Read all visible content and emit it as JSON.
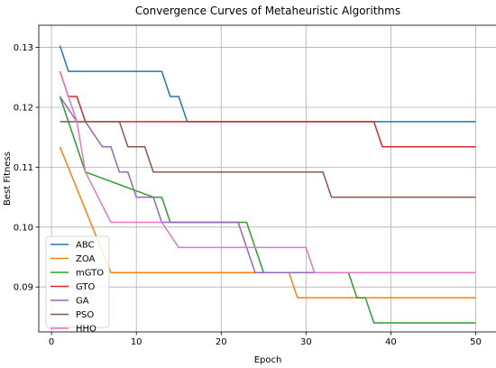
{
  "chart_data": {
    "type": "line",
    "title": "Convergence Curves of Metaheuristic Algorithms",
    "xlabel": "Epoch",
    "ylabel": "Best Fitness",
    "xlim": [
      -1.5,
      52.5
    ],
    "ylim": [
      0.0825,
      0.1337
    ],
    "xticks": [
      0,
      10,
      20,
      30,
      40,
      50
    ],
    "yticks": [
      0.09,
      0.1,
      0.11,
      0.12,
      0.13
    ],
    "ytick_labels": [
      "0.09",
      "0.10",
      "0.11",
      "0.12",
      "0.13"
    ],
    "grid": true,
    "legend_position": "lower-left",
    "series": [
      {
        "name": "ABC",
        "color": "#1f77b4",
        "points": [
          [
            1,
            0.1303
          ],
          [
            2,
            0.126
          ],
          [
            13,
            0.126
          ],
          [
            14,
            0.1218
          ],
          [
            15,
            0.1218
          ],
          [
            16,
            0.1176
          ],
          [
            50,
            0.1176
          ]
        ]
      },
      {
        "name": "ZOA",
        "color": "#ff7f0e",
        "points": [
          [
            1,
            0.1134
          ],
          [
            7,
            0.0924
          ],
          [
            28,
            0.0924
          ],
          [
            29,
            0.0882
          ],
          [
            50,
            0.0882
          ]
        ]
      },
      {
        "name": "mGTO",
        "color": "#2ca02c",
        "points": [
          [
            1,
            0.1218
          ],
          [
            2,
            0.1176
          ],
          [
            4,
            0.1092
          ],
          [
            12,
            0.105
          ],
          [
            13,
            0.105
          ],
          [
            14,
            0.1008
          ],
          [
            23,
            0.1008
          ],
          [
            24,
            0.0966
          ],
          [
            25,
            0.0924
          ],
          [
            35,
            0.0924
          ],
          [
            36,
            0.0882
          ],
          [
            37,
            0.0882
          ],
          [
            38,
            0.084
          ],
          [
            50,
            0.084
          ]
        ]
      },
      {
        "name": "GTO",
        "color": "#d62728",
        "points": [
          [
            1,
            0.126
          ],
          [
            2,
            0.1218
          ],
          [
            3,
            0.1218
          ],
          [
            4,
            0.1176
          ],
          [
            38,
            0.1176
          ],
          [
            39,
            0.1134
          ],
          [
            50,
            0.1134
          ]
        ]
      },
      {
        "name": "GA",
        "color": "#9467bd",
        "points": [
          [
            1,
            0.1218
          ],
          [
            3,
            0.1176
          ],
          [
            4,
            0.1176
          ],
          [
            6,
            0.1134
          ],
          [
            7,
            0.1134
          ],
          [
            8,
            0.1092
          ],
          [
            9,
            0.1092
          ],
          [
            10,
            0.105
          ],
          [
            12,
            0.105
          ],
          [
            13,
            0.1008
          ],
          [
            22,
            0.1008
          ],
          [
            24,
            0.0924
          ],
          [
            50,
            0.0924
          ]
        ]
      },
      {
        "name": "PSO",
        "color": "#8c564b",
        "points": [
          [
            1,
            0.1176
          ],
          [
            8,
            0.1176
          ],
          [
            9,
            0.1134
          ],
          [
            11,
            0.1134
          ],
          [
            12,
            0.1092
          ],
          [
            32,
            0.1092
          ],
          [
            33,
            0.105
          ],
          [
            50,
            0.105
          ]
        ]
      },
      {
        "name": "HHO",
        "color": "#e377c2",
        "points": [
          [
            1,
            0.126
          ],
          [
            3,
            0.1176
          ],
          [
            4,
            0.1092
          ],
          [
            7,
            0.1008
          ],
          [
            13,
            0.1008
          ],
          [
            15,
            0.0966
          ],
          [
            30,
            0.0966
          ],
          [
            31,
            0.0924
          ],
          [
            50,
            0.0924
          ]
        ]
      }
    ]
  }
}
